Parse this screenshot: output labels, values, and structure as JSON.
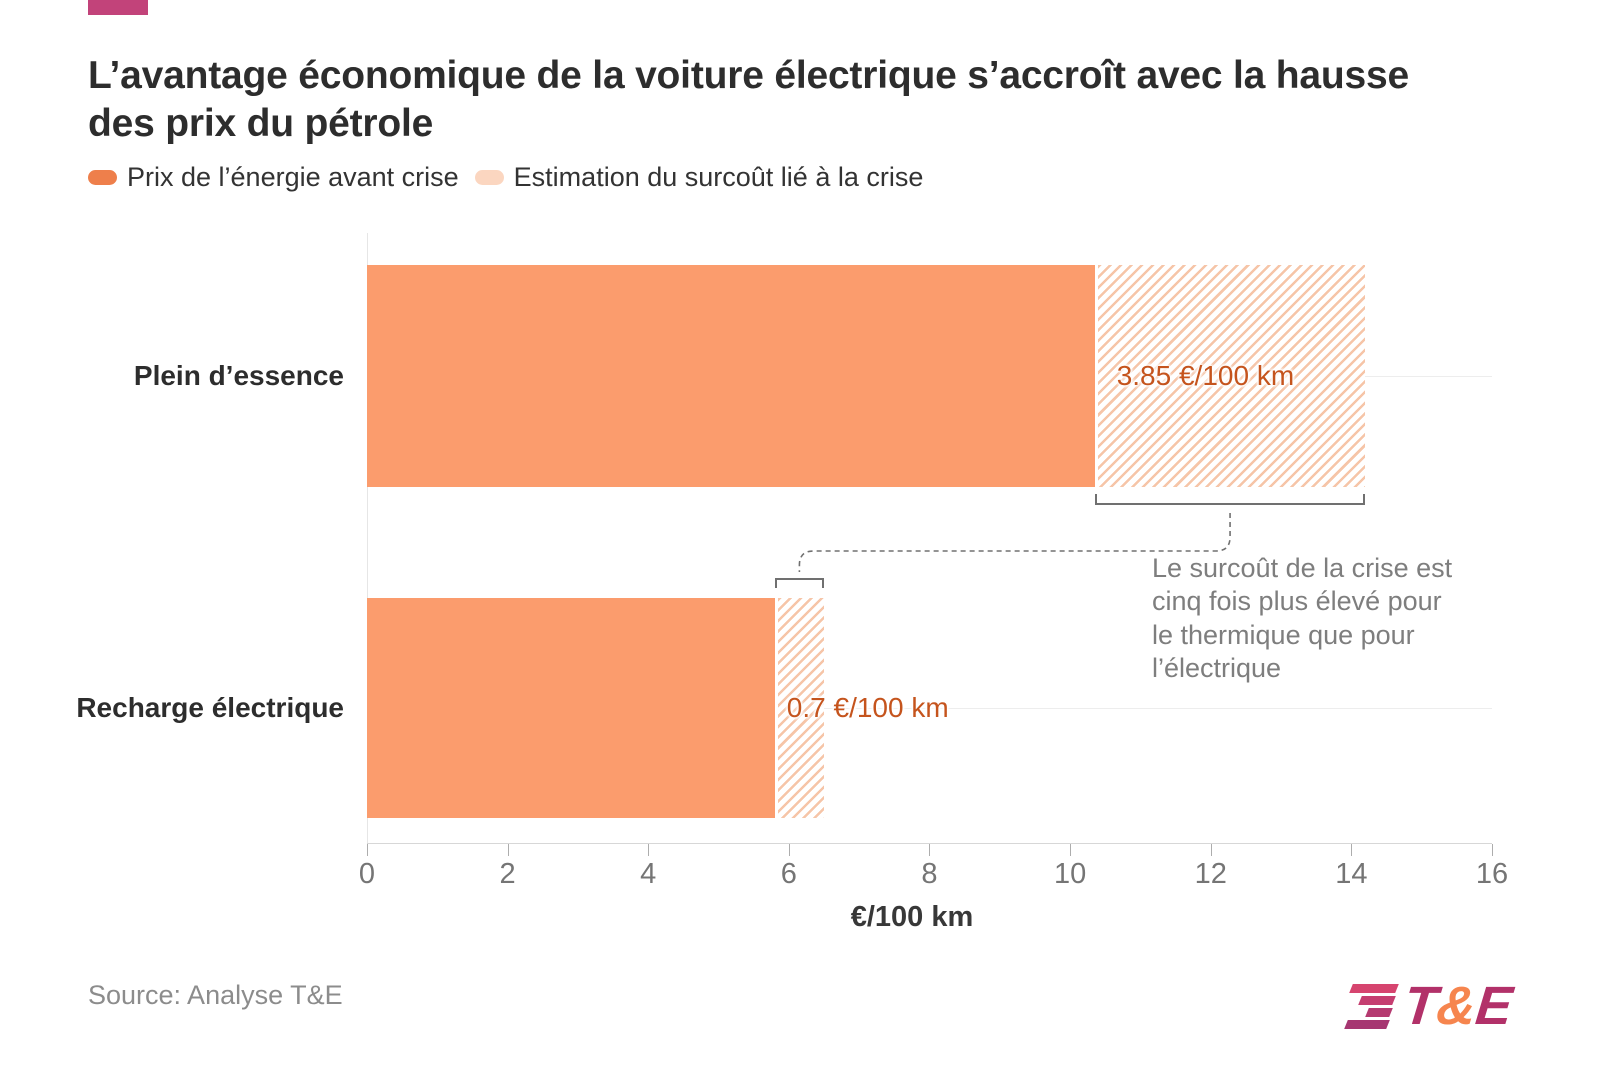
{
  "page": {
    "title": "L’avantage économique de la voiture électrique s’accroît avec la hausse des prix du pétrole",
    "flag_color": "#c2437a",
    "source": "Source: Analyse T&E"
  },
  "legend": {
    "items": [
      {
        "label": "Prix de l’énergie avant crise",
        "color": "#ee7f4b"
      },
      {
        "label": "Estimation du surcoût lié à la crise",
        "color": "#fbd6c0"
      }
    ]
  },
  "chart_data": {
    "type": "bar",
    "orientation": "horizontal",
    "stacked": true,
    "categories": [
      "Plein d’essence",
      "Recharge électrique"
    ],
    "series": [
      {
        "name": "Prix de l’énergie avant crise",
        "values": [
          10.35,
          5.8
        ]
      },
      {
        "name": "Estimation du surcoût lié à la crise",
        "values": [
          3.85,
          0.7
        ],
        "style": "hatched"
      }
    ],
    "totals": [
      14.2,
      6.5
    ],
    "value_labels": [
      "3.85 €/100 km",
      "0.7 €/100 km"
    ],
    "xlabel": "€/100 km",
    "xlim": [
      0,
      16
    ],
    "xticks": [
      0,
      2,
      4,
      6,
      8,
      10,
      12,
      14,
      16
    ],
    "grid": "category-center-lines",
    "annotation_note": "Le surcoût de la crise est\ncinq fois plus élevé pour\nle thermique que pour\nl’électrique"
  },
  "colors": {
    "bar_solid": "#fb9c6d",
    "hatch_stripe": "#f6c5a8",
    "value_label": "#c5541d",
    "connector": "#707070",
    "note_text": "#7e7e7e",
    "axis_text": "#757575"
  },
  "logo": {
    "letters": [
      "T",
      "&",
      "E"
    ],
    "letter_colors": [
      "#b23169",
      "#f6854e",
      "#b23169"
    ],
    "stripe_colors": [
      "#d6446f",
      "#c53e70",
      "#b53a70",
      "#a63671"
    ]
  }
}
